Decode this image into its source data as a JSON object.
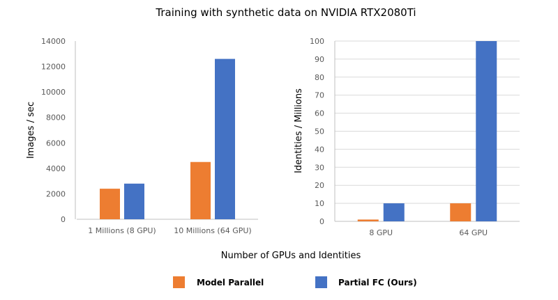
{
  "title": "Training with synthetic data on NVIDIA RTX2080Ti",
  "xlabel": "Number of GPUs and Identities",
  "colors": {
    "Model Parallel": "#ed7d31",
    "Partial FC (Ours)": "#4472c4"
  },
  "legend": [
    {
      "name": "Model Parallel"
    },
    {
      "name": "Partial FC (Ours)"
    }
  ],
  "chart_data": [
    {
      "type": "bar",
      "ylabel": "Images / sec",
      "ylim": [
        0,
        14000
      ],
      "yticks": [
        0,
        2000,
        4000,
        6000,
        8000,
        10000,
        12000,
        14000
      ],
      "categories": [
        "1 Millions (8 GPU)",
        "10 Millions (64 GPU)"
      ],
      "series": [
        {
          "name": "Model Parallel",
          "values": [
            2400,
            4500
          ]
        },
        {
          "name": "Partial FC (Ours)",
          "values": [
            2800,
            12600
          ]
        }
      ],
      "grid": false,
      "legend": "bottom"
    },
    {
      "type": "bar",
      "ylabel": "Identities / Millions",
      "ylim": [
        0,
        100
      ],
      "yticks": [
        0,
        10,
        20,
        30,
        40,
        50,
        60,
        70,
        80,
        90,
        100
      ],
      "categories": [
        "8 GPU",
        "64 GPU"
      ],
      "series": [
        {
          "name": "Model Parallel",
          "values": [
            1,
            10
          ]
        },
        {
          "name": "Partial FC (Ours)",
          "values": [
            10,
            100
          ]
        }
      ],
      "grid": true,
      "legend": "bottom"
    }
  ]
}
